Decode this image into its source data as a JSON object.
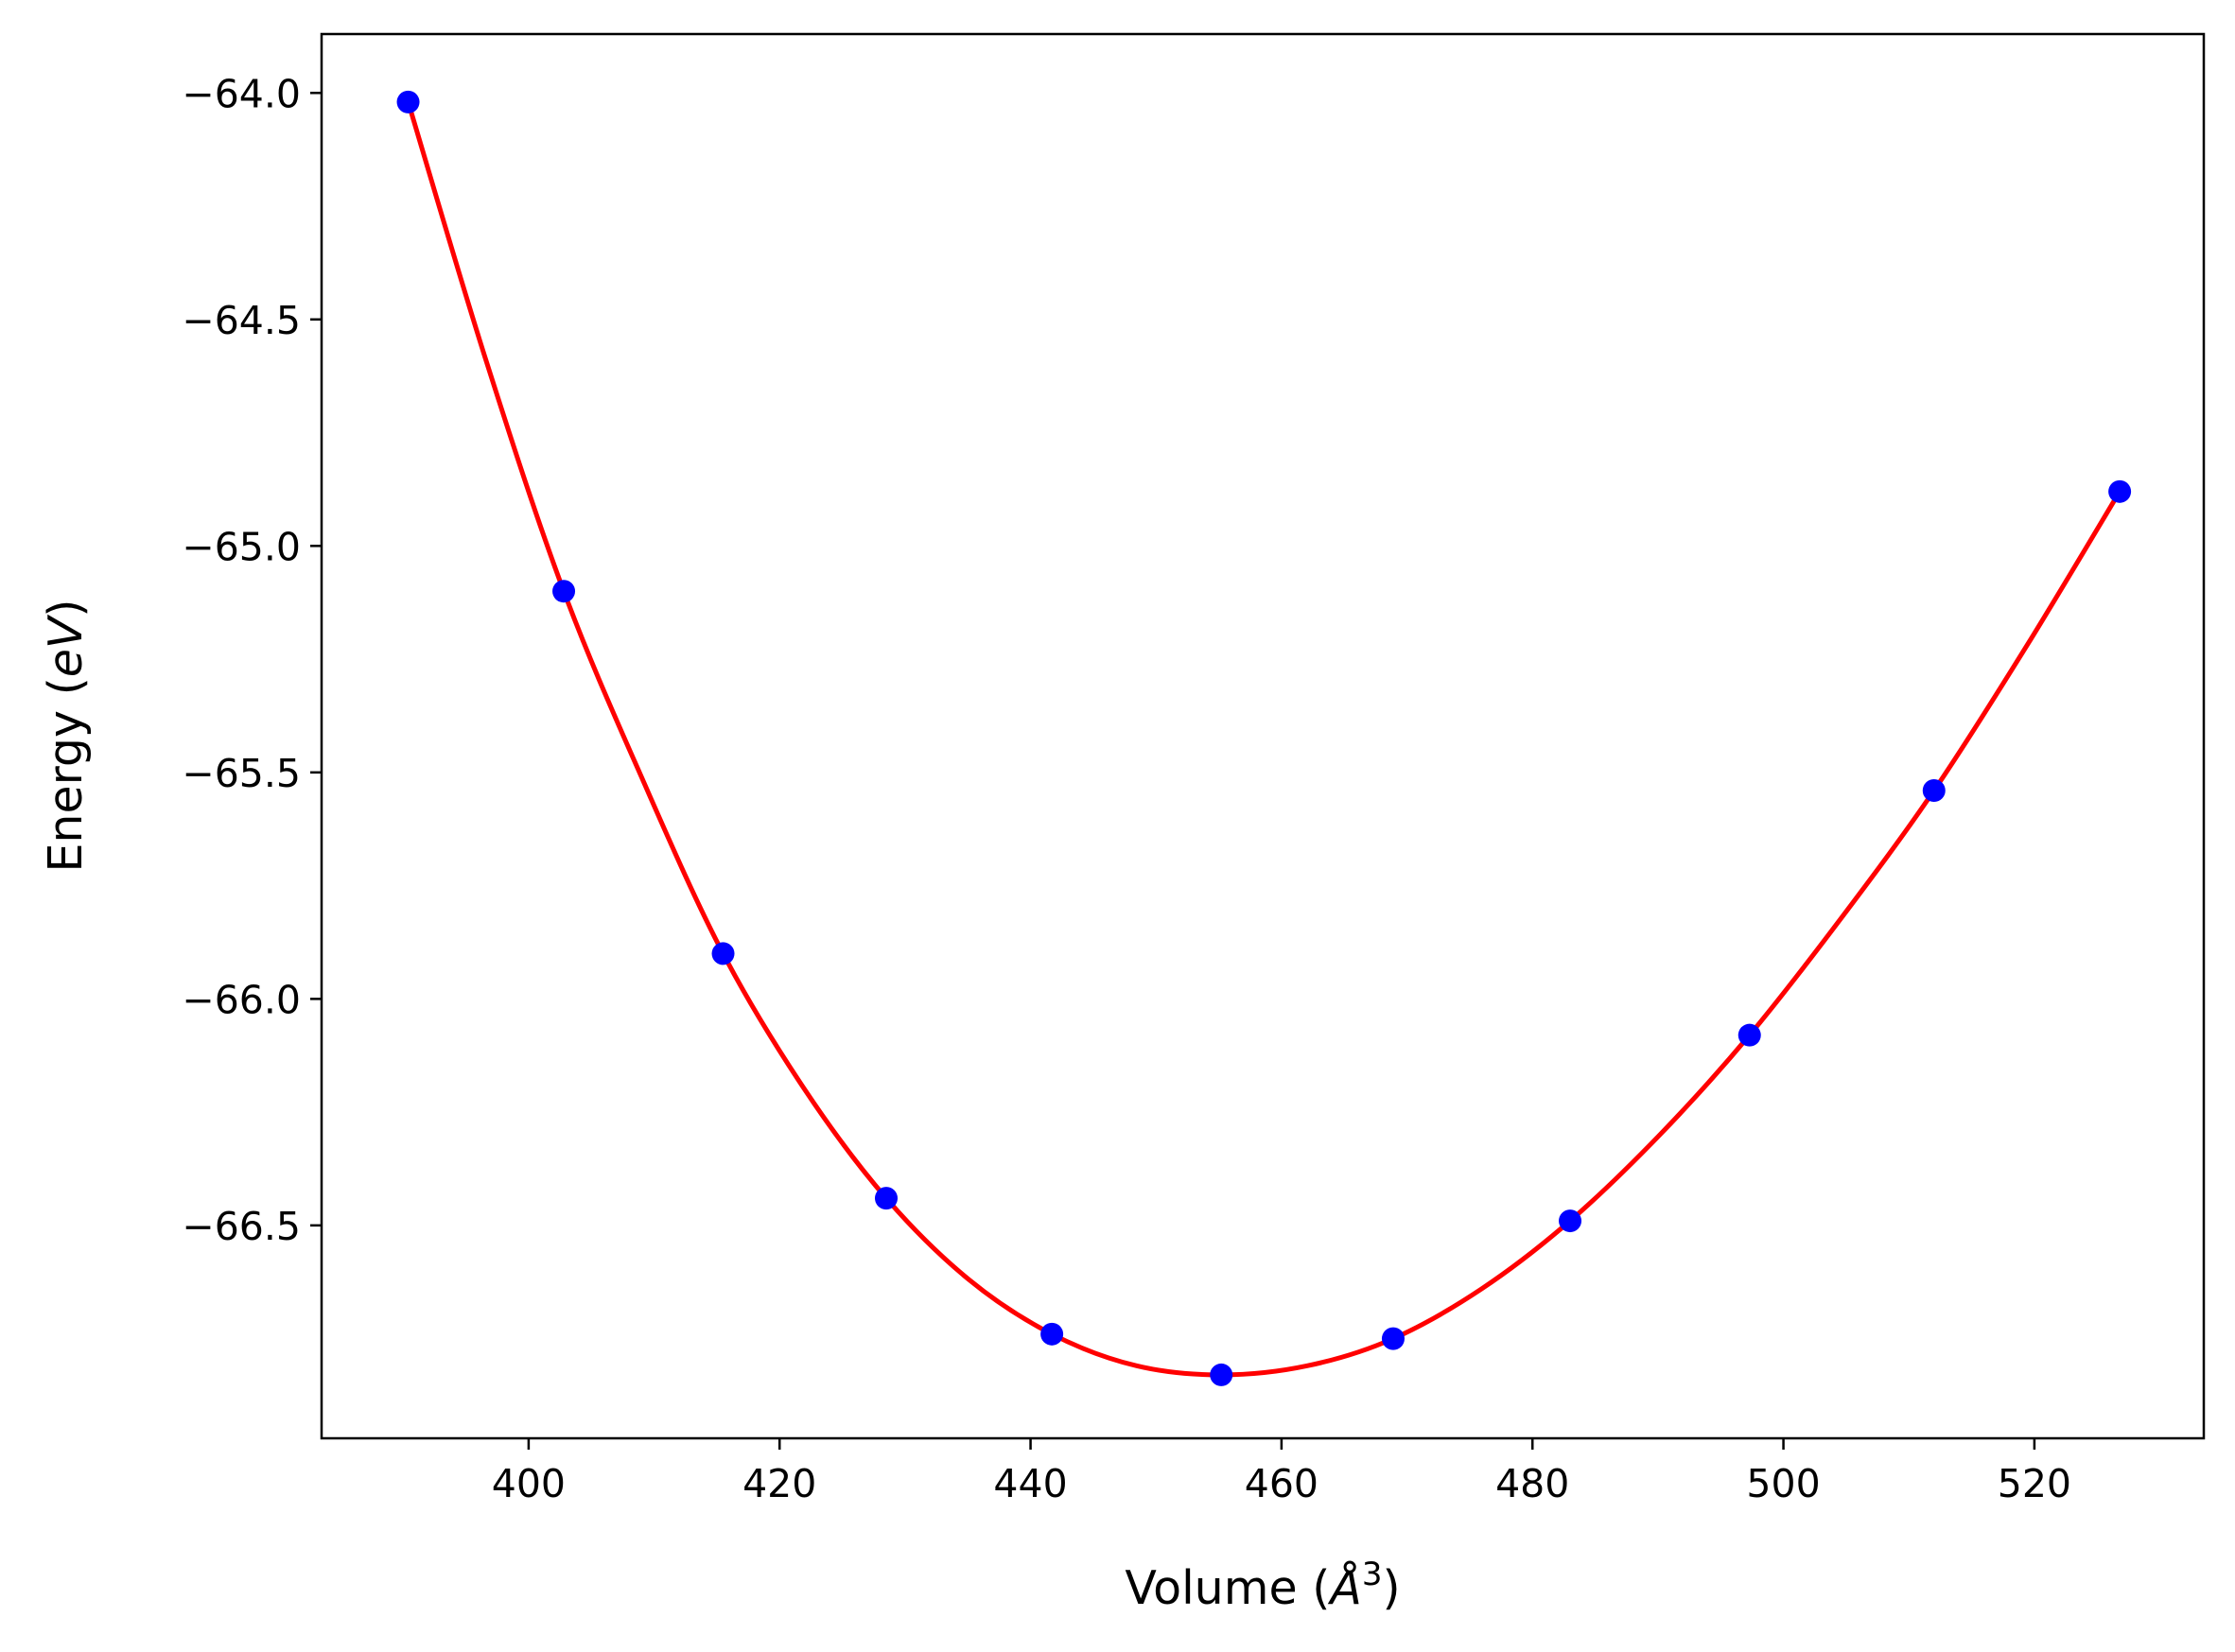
{
  "chart_data": {
    "type": "scatter",
    "xlabel": "Volume",
    "xlabel_unit": "Å",
    "xlabel_power": "3",
    "ylabel": "Energy",
    "ylabel_unit": "eV",
    "xlim": [
      383.5,
      533.5
    ],
    "ylim": [
      -66.97,
      -63.87
    ],
    "x_ticks": [
      400,
      420,
      440,
      460,
      480,
      500,
      520
    ],
    "x_tick_labels": [
      "400",
      "420",
      "440",
      "460",
      "480",
      "500",
      "520"
    ],
    "y_ticks": [
      -64.0,
      -64.5,
      -65.0,
      -65.5,
      -66.0,
      -66.5
    ],
    "y_tick_labels": [
      "−64.0",
      "−64.5",
      "−65.0",
      "−65.5",
      "−66.0",
      "−66.5"
    ],
    "grid": false,
    "series": [
      {
        "kind": "points",
        "color": "#0000ff",
        "x": [
          390.4,
          402.8,
          415.5,
          428.5,
          441.7,
          455.2,
          468.9,
          483.0,
          497.3,
          512.0,
          526.8
        ],
        "y": [
          -64.02,
          -65.1,
          -65.9,
          -66.44,
          -66.74,
          -66.83,
          -66.75,
          -66.49,
          -66.08,
          -65.54,
          -64.88
        ]
      },
      {
        "kind": "fit-curve",
        "color": "#ff0000",
        "x": [
          390.4,
          396.6,
          402.8,
          409.15,
          415.5,
          422.0,
          428.5,
          435.1,
          441.7,
          448.45,
          455.2,
          462.05,
          468.9,
          475.95,
          483.0,
          490.15,
          497.3,
          504.65,
          512.0,
          519.4,
          526.8
        ],
        "y": [
          -64.02,
          -64.59,
          -65.1,
          -65.52,
          -65.9,
          -66.2,
          -66.44,
          -66.62,
          -66.74,
          -66.81,
          -66.83,
          -66.81,
          -66.75,
          -66.64,
          -66.49,
          -66.3,
          -66.08,
          -65.82,
          -65.54,
          -65.22,
          -64.88
        ]
      }
    ]
  }
}
